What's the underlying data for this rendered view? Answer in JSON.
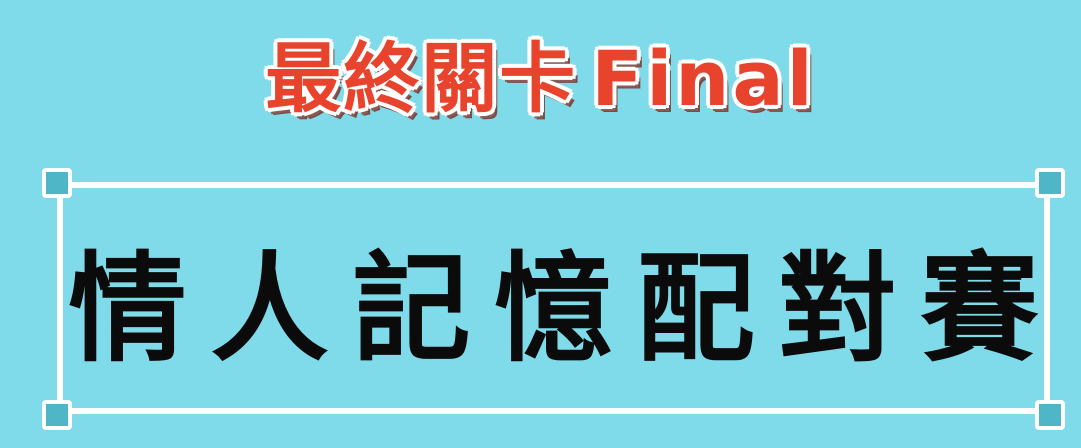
{
  "header": {
    "title_zh": "最終關卡",
    "title_en": "Final",
    "color": "#e8432c"
  },
  "main": {
    "title": "情人記憶配對賽"
  },
  "colors": {
    "background": "#7fdbe9",
    "frame": "#ffffff",
    "handle": "#4fb6c7",
    "main_text": "#0b0b0b"
  }
}
